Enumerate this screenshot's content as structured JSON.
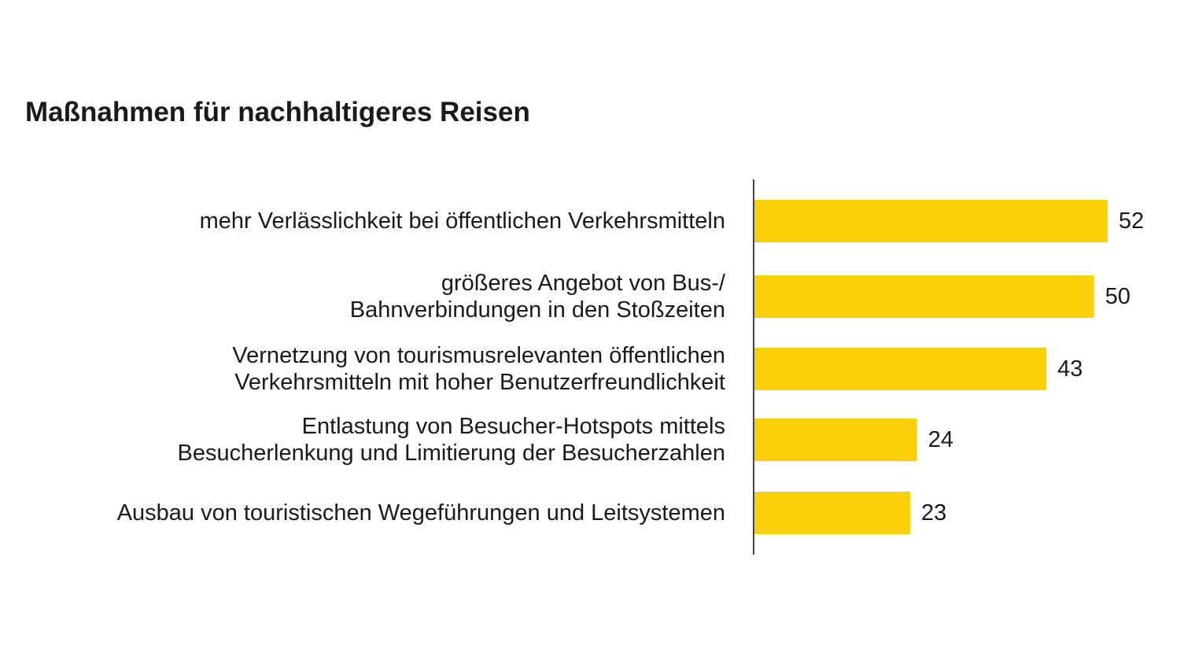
{
  "chart_data": {
    "type": "bar",
    "orientation": "horizontal",
    "title": "Maßnahmen für nachhaltigeres Reisen",
    "categories": [
      [
        "mehr Verlässlichkeit bei öffentlichen Verkehrsmitteln"
      ],
      [
        "größeres Angebot von Bus-/",
        "Bahnverbindungen in den Stoßzeiten"
      ],
      [
        "Vernetzung von tourismusrelevanten öffentlichen",
        "Verkehrsmitteln mit hoher Benutzerfreundlichkeit"
      ],
      [
        "Entlastung von Besucher-Hotspots mittels",
        "Besucherlenkung und Limitierung der Besucherzahlen"
      ],
      [
        "Ausbau von touristischen Wegeführungen und Leitsystemen"
      ]
    ],
    "values": [
      52,
      50,
      43,
      24,
      23
    ],
    "data_labels": [
      "52",
      "50",
      "43",
      "24",
      "23"
    ],
    "xlim": [
      0,
      52
    ],
    "grid": false,
    "legend": "none",
    "bar_color": "#fccf0a",
    "axis_color": "#444444"
  }
}
